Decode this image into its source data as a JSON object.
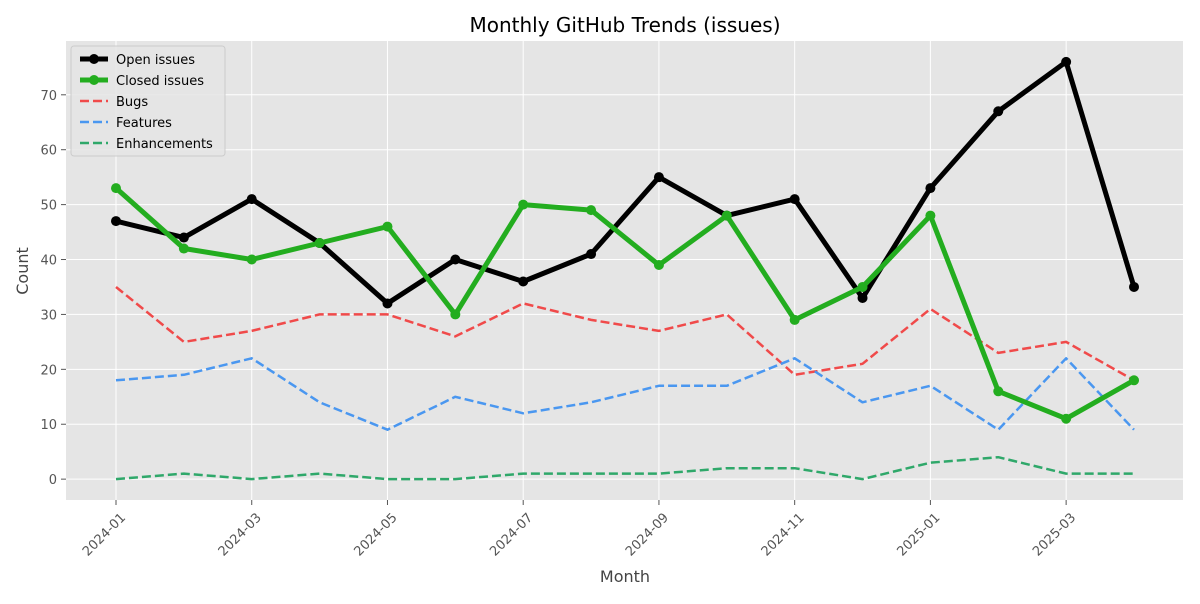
{
  "chart_data": {
    "type": "line",
    "title": "Monthly GitHub Trends (issues)",
    "xlabel": "Month",
    "ylabel": "Count",
    "x": [
      "2024-01",
      "2024-02",
      "2024-03",
      "2024-04",
      "2024-05",
      "2024-06",
      "2024-07",
      "2024-08",
      "2024-09",
      "2024-10",
      "2024-11",
      "2024-12",
      "2025-01",
      "2025-02",
      "2025-03",
      "2025-04"
    ],
    "x_tick_labels": [
      "2024-01",
      "2024-03",
      "2024-05",
      "2024-07",
      "2024-09",
      "2024-11",
      "2025-01",
      "2025-03"
    ],
    "y_ticks": [
      0,
      10,
      20,
      30,
      40,
      50,
      60,
      70
    ],
    "ylim": [
      -3.8,
      79.8
    ],
    "grid": true,
    "legend_position": "top-left",
    "series": [
      {
        "name": "Open issues",
        "color": "#000000",
        "style": "solid-marker",
        "values": [
          47,
          44,
          51,
          43,
          32,
          40,
          36,
          41,
          55,
          48,
          51,
          33,
          53,
          67,
          76,
          35
        ]
      },
      {
        "name": "Closed issues",
        "color": "#23ad1f",
        "style": "solid-marker",
        "values": [
          53,
          42,
          40,
          43,
          46,
          30,
          50,
          49,
          39,
          48,
          29,
          35,
          48,
          16,
          11,
          18
        ]
      },
      {
        "name": "Bugs",
        "color": "#f04a4a",
        "style": "dashed",
        "values": [
          35,
          25,
          27,
          30,
          30,
          26,
          32,
          29,
          27,
          30,
          19,
          21,
          31,
          23,
          25,
          18
        ]
      },
      {
        "name": "Features",
        "color": "#4a97f0",
        "style": "dashed",
        "values": [
          18,
          19,
          22,
          14,
          9,
          15,
          12,
          14,
          17,
          17,
          22,
          14,
          17,
          9,
          22,
          9
        ]
      },
      {
        "name": "Enhancements",
        "color": "#2fa86a",
        "style": "dashed",
        "values": [
          0,
          1,
          0,
          1,
          0,
          0,
          1,
          1,
          1,
          2,
          2,
          0,
          3,
          4,
          1,
          1
        ]
      }
    ]
  }
}
